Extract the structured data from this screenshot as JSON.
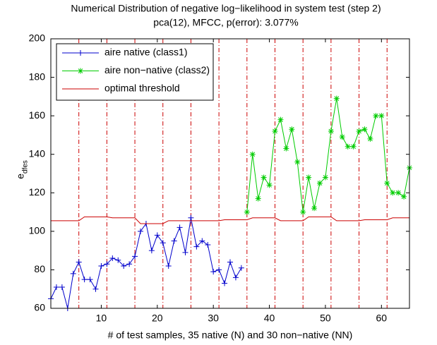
{
  "chart_data": {
    "type": "line",
    "title": "Numerical Distribution of negative log−likelihood in system test (step 2)",
    "subtitle": "pca(12), MFCC, p(error): 3.077%",
    "xlabel": "# of test samples, 35 native (N) and 30 non−native (NN)",
    "ylabel": "e",
    "ylabel_sub": "dfes",
    "xlim": [
      1,
      65
    ],
    "ylim": [
      60,
      200
    ],
    "xticks": [
      10,
      20,
      30,
      40,
      50,
      60
    ],
    "yticks": [
      60,
      80,
      100,
      120,
      140,
      160,
      180,
      200
    ],
    "vlines": [
      6,
      11,
      16,
      21,
      26,
      31,
      36,
      41,
      46,
      51,
      56,
      61
    ],
    "vline_color": "#cc0000",
    "legend": "upper left",
    "series": [
      {
        "name": "aire native (class1)",
        "color": "#0000cc",
        "marker": "plus",
        "x": [
          1,
          2,
          3,
          4,
          5,
          6,
          7,
          8,
          9,
          10,
          11,
          12,
          13,
          14,
          15,
          16,
          17,
          18,
          19,
          20,
          21,
          22,
          23,
          24,
          25,
          26,
          27,
          28,
          29,
          30,
          31,
          32,
          33,
          34,
          35
        ],
        "values": [
          65,
          71,
          71,
          60,
          78,
          84,
          75,
          75,
          70,
          82,
          83,
          86,
          85,
          82,
          83,
          87,
          100,
          104,
          90,
          98,
          94,
          82,
          95,
          102,
          89,
          107,
          92,
          95,
          93,
          79,
          80,
          73,
          84,
          76,
          81
        ]
      },
      {
        "name": "aire non−native (class2)",
        "color": "#00cc00",
        "marker": "star",
        "x": [
          36,
          37,
          38,
          39,
          40,
          41,
          42,
          43,
          44,
          45,
          46,
          47,
          48,
          49,
          50,
          51,
          52,
          53,
          54,
          55,
          56,
          57,
          58,
          59,
          60,
          61,
          62,
          63,
          64,
          65
        ],
        "values": [
          110,
          140,
          117,
          128,
          124,
          152,
          158,
          143,
          153,
          136,
          110,
          128,
          112,
          125,
          128,
          152,
          169,
          149,
          144,
          144,
          152,
          153,
          148,
          160,
          160,
          125,
          120,
          120,
          118,
          133
        ]
      },
      {
        "name": "optimal threshold",
        "color": "#cc0000",
        "marker": "none",
        "x": [
          1,
          2,
          3,
          4,
          5,
          6,
          7,
          8,
          9,
          10,
          11,
          12,
          13,
          14,
          15,
          16,
          17,
          18,
          19,
          20,
          21,
          22,
          23,
          24,
          25,
          26,
          27,
          28,
          29,
          30,
          31,
          32,
          33,
          34,
          35,
          36,
          37,
          38,
          39,
          40,
          41,
          42,
          43,
          44,
          45,
          46,
          47,
          48,
          49,
          50,
          51,
          52,
          53,
          54,
          55,
          56,
          57,
          58,
          59,
          60,
          61,
          62,
          63,
          64,
          65
        ],
        "values": [
          105.5,
          105.5,
          105.5,
          105.5,
          105.5,
          105.5,
          107.5,
          107.5,
          107.5,
          107.5,
          107.5,
          107,
          107,
          107,
          107,
          107,
          104,
          104,
          104,
          104,
          104,
          105.5,
          105.5,
          105.5,
          105.5,
          105.5,
          105.5,
          105.5,
          105.5,
          105.5,
          105.5,
          106,
          106,
          106,
          106,
          106,
          107,
          107,
          107,
          107,
          107,
          105.5,
          105.5,
          105.5,
          105.5,
          105.5,
          107.5,
          107.5,
          107.5,
          107.5,
          107.5,
          105.5,
          105.5,
          105.5,
          105.5,
          105.5,
          106,
          106,
          106,
          106,
          106,
          107,
          107,
          107,
          107
        ]
      }
    ]
  }
}
